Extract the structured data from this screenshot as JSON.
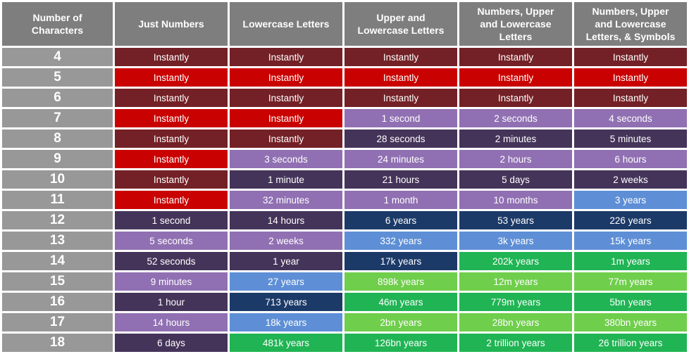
{
  "chart_data": {
    "type": "table",
    "columns": [
      "Number of\nCharacters",
      "Just Numbers",
      "Lowercase Letters",
      "Upper and\nLowercase Letters",
      "Numbers, Upper\nand Lowercase\nLetters",
      "Numbers, Upper\nand Lowercase\nLetters, & Symbols"
    ],
    "rows": [
      {
        "chars": "4",
        "cells": [
          [
            "Instantly",
            "maroon"
          ],
          [
            "Instantly",
            "maroon"
          ],
          [
            "Instantly",
            "maroon"
          ],
          [
            "Instantly",
            "maroon"
          ],
          [
            "Instantly",
            "maroon"
          ]
        ]
      },
      {
        "chars": "5",
        "cells": [
          [
            "Instantly",
            "red"
          ],
          [
            "Instantly",
            "red"
          ],
          [
            "Instantly",
            "red"
          ],
          [
            "Instantly",
            "red"
          ],
          [
            "Instantly",
            "red"
          ]
        ]
      },
      {
        "chars": "6",
        "cells": [
          [
            "Instantly",
            "maroon"
          ],
          [
            "Instantly",
            "maroon"
          ],
          [
            "Instantly",
            "maroon"
          ],
          [
            "Instantly",
            "maroon"
          ],
          [
            "Instantly",
            "maroon"
          ]
        ]
      },
      {
        "chars": "7",
        "cells": [
          [
            "Instantly",
            "red"
          ],
          [
            "Instantly",
            "red"
          ],
          [
            "1 second",
            "light_purple"
          ],
          [
            "2 seconds",
            "light_purple"
          ],
          [
            "4 seconds",
            "light_purple"
          ]
        ]
      },
      {
        "chars": "8",
        "cells": [
          [
            "Instantly",
            "maroon"
          ],
          [
            "Instantly",
            "maroon"
          ],
          [
            "28 seconds",
            "dark_purple"
          ],
          [
            "2 minutes",
            "dark_purple"
          ],
          [
            "5 minutes",
            "dark_purple"
          ]
        ]
      },
      {
        "chars": "9",
        "cells": [
          [
            "Instantly",
            "red"
          ],
          [
            "3 seconds",
            "light_purple"
          ],
          [
            "24 minutes",
            "light_purple"
          ],
          [
            "2 hours",
            "light_purple"
          ],
          [
            "6 hours",
            "light_purple"
          ]
        ]
      },
      {
        "chars": "10",
        "cells": [
          [
            "Instantly",
            "maroon"
          ],
          [
            "1 minute",
            "dark_purple"
          ],
          [
            "21 hours",
            "dark_purple"
          ],
          [
            "5 days",
            "dark_purple"
          ],
          [
            "2 weeks",
            "dark_purple"
          ]
        ]
      },
      {
        "chars": "11",
        "cells": [
          [
            "Instantly",
            "red"
          ],
          [
            "32 minutes",
            "light_purple"
          ],
          [
            "1 month",
            "light_purple"
          ],
          [
            "10 months",
            "light_purple"
          ],
          [
            "3 years",
            "blue"
          ]
        ]
      },
      {
        "chars": "12",
        "cells": [
          [
            "1 second",
            "dark_purple"
          ],
          [
            "14 hours",
            "dark_purple"
          ],
          [
            "6 years",
            "navy"
          ],
          [
            "53 years",
            "navy"
          ],
          [
            "226 years",
            "navy"
          ]
        ]
      },
      {
        "chars": "13",
        "cells": [
          [
            "5 seconds",
            "light_purple"
          ],
          [
            "2 weeks",
            "light_purple"
          ],
          [
            "332 years",
            "blue"
          ],
          [
            "3k years",
            "blue"
          ],
          [
            "15k years",
            "blue"
          ]
        ]
      },
      {
        "chars": "14",
        "cells": [
          [
            "52 seconds",
            "dark_purple"
          ],
          [
            "1 year",
            "dark_purple"
          ],
          [
            "17k years",
            "navy"
          ],
          [
            "202k years",
            "dark_green"
          ],
          [
            "1m years",
            "dark_green"
          ]
        ]
      },
      {
        "chars": "15",
        "cells": [
          [
            "9 minutes",
            "light_purple"
          ],
          [
            "27 years",
            "blue"
          ],
          [
            "898k years",
            "light_green"
          ],
          [
            "12m years",
            "light_green"
          ],
          [
            "77m years",
            "light_green"
          ]
        ]
      },
      {
        "chars": "16",
        "cells": [
          [
            "1 hour",
            "dark_purple"
          ],
          [
            "713 years",
            "navy"
          ],
          [
            "46m years",
            "dark_green"
          ],
          [
            "779m years",
            "dark_green"
          ],
          [
            "5bn years",
            "dark_green"
          ]
        ]
      },
      {
        "chars": "17",
        "cells": [
          [
            "14 hours",
            "light_purple"
          ],
          [
            "18k years",
            "blue"
          ],
          [
            "2bn years",
            "light_green"
          ],
          [
            "28bn years",
            "light_green"
          ],
          [
            "380bn years",
            "light_green"
          ]
        ]
      },
      {
        "chars": "18",
        "cells": [
          [
            "6 days",
            "dark_purple"
          ],
          [
            "481k years",
            "dark_green"
          ],
          [
            "126bn years",
            "dark_green"
          ],
          [
            "2 trillion years",
            "dark_green"
          ],
          [
            "26 trillion years",
            "dark_green"
          ]
        ]
      }
    ]
  },
  "colors": {
    "header_bg": "#7E7E7E",
    "char_bg": "#989898",
    "maroon": "#732126",
    "red": "#C90201",
    "light_purple": "#9070B2",
    "dark_purple": "#453459",
    "navy": "#1C3A68",
    "blue": "#5E8FD6",
    "light_green": "#6FCE4B",
    "dark_green": "#20B454",
    "text": "#FFFFFF",
    "border": "#FFFFFF"
  }
}
